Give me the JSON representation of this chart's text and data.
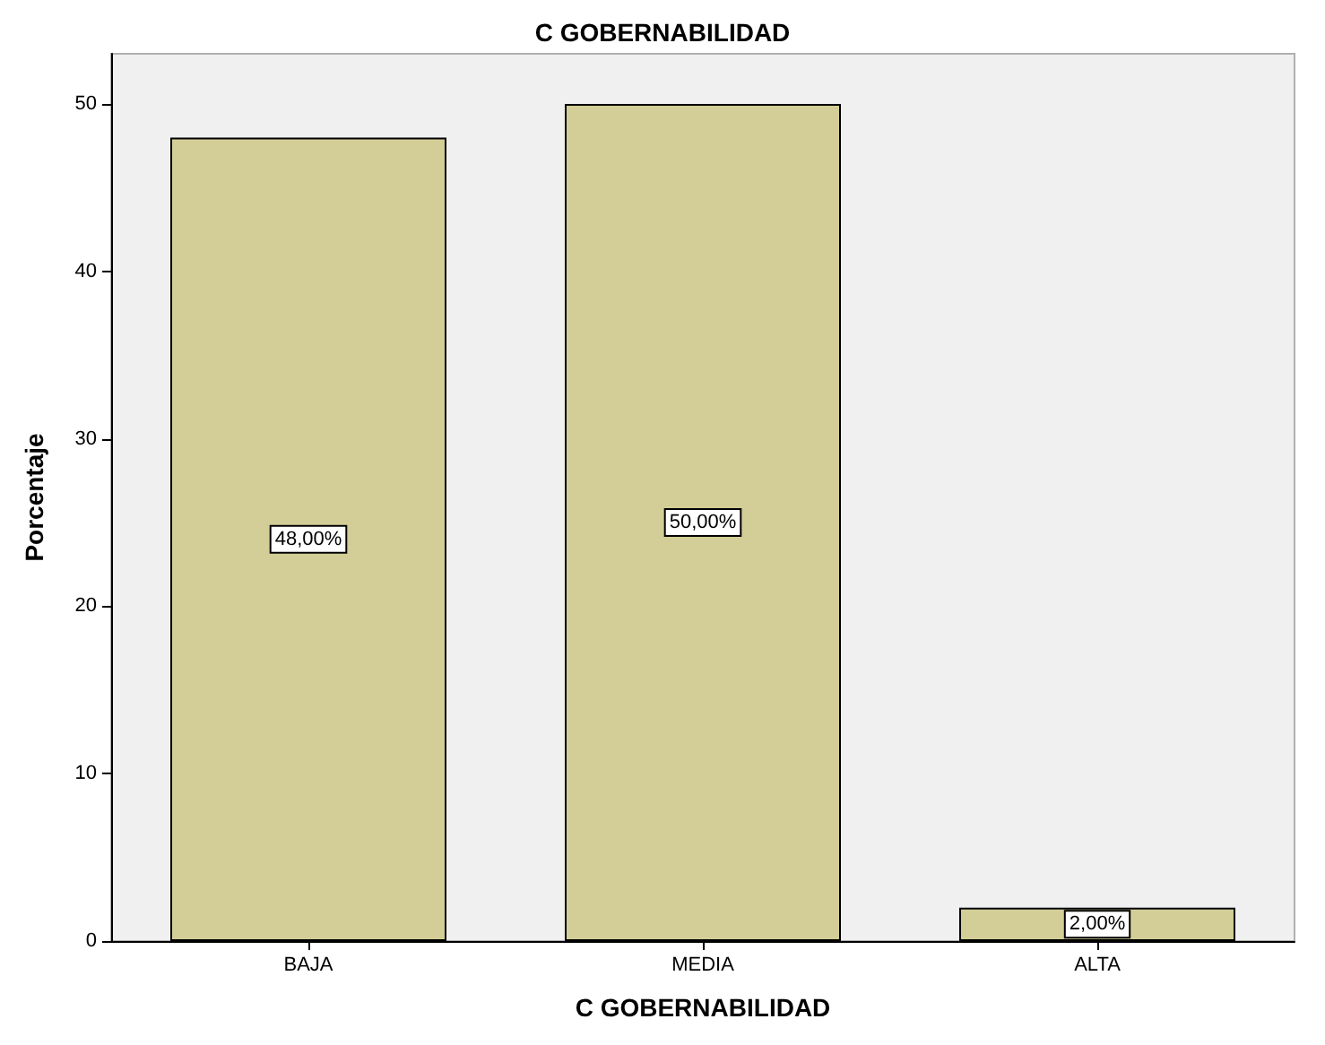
{
  "chart_data": {
    "type": "bar",
    "title": "C GOBERNABILIDAD",
    "xlabel": "C GOBERNABILIDAD",
    "ylabel": "Porcentaje",
    "categories": [
      "BAJA",
      "MEDIA",
      "ALTA"
    ],
    "values": [
      48,
      50,
      2
    ],
    "value_labels": [
      "48,00%",
      "50,00%",
      "2,00%"
    ],
    "color": "#d3ce97",
    "ylim": [
      0,
      53
    ],
    "yticks": [
      0,
      10,
      20,
      30,
      40,
      50
    ],
    "grid": false
  }
}
